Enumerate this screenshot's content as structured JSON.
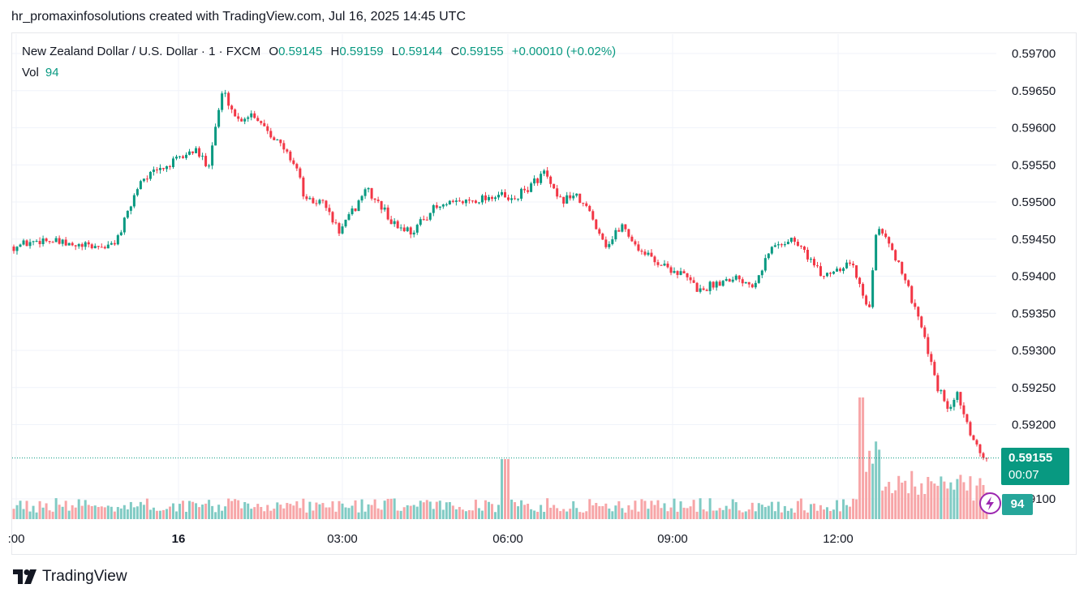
{
  "header": {
    "text": "hr_promaxinfosolutions created with TradingView.com, Jul 16, 2025 14:45 UTC"
  },
  "legend": {
    "symbol": "New Zealand Dollar / U.S. Dollar · 1 · FXCM",
    "o_label": "O",
    "o_value": "0.59145",
    "h_label": "H",
    "h_value": "0.59159",
    "l_label": "L",
    "l_value": "0.59144",
    "c_label": "C",
    "c_value": "0.59155",
    "change": "+0.00010 (+0.02%)",
    "vol_label": "Vol",
    "vol_value": "94"
  },
  "price_tag": {
    "price": "0.59155",
    "countdown": "00:07"
  },
  "vol_tag": {
    "value": "94"
  },
  "footer": {
    "brand": "TradingView"
  },
  "colors": {
    "up": "#089981",
    "down": "#f23645",
    "vol_up": "#80cbc4",
    "vol_down": "#f7a5a7",
    "grid": "#f0f3fa"
  },
  "chart_data": {
    "type": "candlestick",
    "ylim": [
      0.5907,
      0.5974
    ],
    "y_ticks": [
      "0.59700",
      "0.59650",
      "0.59600",
      "0.59550",
      "0.59500",
      "0.59450",
      "0.59400",
      "0.59350",
      "0.59300",
      "0.59250",
      "0.59200",
      "0.59100"
    ],
    "x_ticks": [
      ":00",
      "16",
      "03:00",
      "06:00",
      "09:00",
      "12:00"
    ],
    "last_price": 0.59155,
    "price_path": [
      [
        0.0,
        0.5944
      ],
      [
        0.03,
        0.5945
      ],
      [
        0.06,
        0.5944
      ],
      [
        0.1,
        0.5944
      ],
      [
        0.11,
        0.5946
      ],
      [
        0.13,
        0.5953
      ],
      [
        0.16,
        0.5955
      ],
      [
        0.185,
        0.5957
      ],
      [
        0.2,
        0.5955
      ],
      [
        0.21,
        0.5962
      ],
      [
        0.215,
        0.5965
      ],
      [
        0.23,
        0.5961
      ],
      [
        0.245,
        0.5962
      ],
      [
        0.26,
        0.596
      ],
      [
        0.29,
        0.5955
      ],
      [
        0.3,
        0.595
      ],
      [
        0.32,
        0.595
      ],
      [
        0.325,
        0.5948
      ],
      [
        0.335,
        0.5946
      ],
      [
        0.355,
        0.595
      ],
      [
        0.36,
        0.5952
      ],
      [
        0.38,
        0.5949
      ],
      [
        0.39,
        0.5947
      ],
      [
        0.41,
        0.5946
      ],
      [
        0.43,
        0.5949
      ],
      [
        0.46,
        0.595
      ],
      [
        0.5,
        0.5951
      ],
      [
        0.51,
        0.595
      ],
      [
        0.53,
        0.5952
      ],
      [
        0.545,
        0.5954
      ],
      [
        0.56,
        0.595
      ],
      [
        0.575,
        0.5951
      ],
      [
        0.59,
        0.5949
      ],
      [
        0.61,
        0.5944
      ],
      [
        0.625,
        0.5947
      ],
      [
        0.64,
        0.5944
      ],
      [
        0.66,
        0.5942
      ],
      [
        0.675,
        0.5941
      ],
      [
        0.69,
        0.594
      ],
      [
        0.705,
        0.5938
      ],
      [
        0.72,
        0.5939
      ],
      [
        0.74,
        0.594
      ],
      [
        0.76,
        0.5939
      ],
      [
        0.78,
        0.5944
      ],
      [
        0.8,
        0.5945
      ],
      [
        0.815,
        0.5943
      ],
      [
        0.83,
        0.594
      ],
      [
        0.845,
        0.5941
      ],
      [
        0.86,
        0.5942
      ],
      [
        0.875,
        0.5937
      ],
      [
        0.88,
        0.5936
      ],
      [
        0.885,
        0.5945
      ],
      [
        0.89,
        0.5947
      ],
      [
        0.9,
        0.5944
      ],
      [
        0.91,
        0.5942
      ],
      [
        0.92,
        0.5938
      ],
      [
        0.93,
        0.5934
      ],
      [
        0.94,
        0.593
      ],
      [
        0.95,
        0.5925
      ],
      [
        0.96,
        0.5922
      ],
      [
        0.97,
        0.5924
      ],
      [
        0.98,
        0.592
      ],
      [
        0.99,
        0.5917
      ],
      [
        1.0,
        0.59155
      ]
    ]
  }
}
